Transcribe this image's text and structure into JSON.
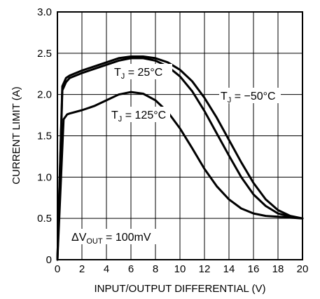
{
  "chart_data": {
    "type": "line",
    "xlabel": "INPUT/OUTPUT DIFFERENTIAL (V)",
    "ylabel": "CURRENT LIMIT (A)",
    "xlim": [
      0,
      20
    ],
    "ylim": [
      0,
      3.0
    ],
    "x_ticks": [
      "0",
      "2",
      "4",
      "6",
      "8",
      "10",
      "12",
      "14",
      "16",
      "18",
      "20"
    ],
    "y_ticks": [
      "0",
      "0.5",
      "1.0",
      "1.5",
      "2.0",
      "2.5",
      "3.0"
    ],
    "grid": true,
    "series": [
      {
        "name": "TJ = 25°C",
        "label": {
          "main": "T",
          "sub": "J",
          "rest": " = 25°C"
        },
        "points": [
          [
            0,
            0
          ],
          [
            0.4,
            2.05
          ],
          [
            0.7,
            2.15
          ],
          [
            1,
            2.2
          ],
          [
            2,
            2.26
          ],
          [
            3,
            2.31
          ],
          [
            4,
            2.36
          ],
          [
            5,
            2.41
          ],
          [
            6,
            2.44
          ],
          [
            7,
            2.44
          ],
          [
            8,
            2.41
          ],
          [
            9,
            2.34
          ],
          [
            10,
            2.22
          ],
          [
            11,
            2.04
          ],
          [
            12,
            1.8
          ],
          [
            13,
            1.53
          ],
          [
            14,
            1.26
          ],
          [
            15,
            1.0
          ],
          [
            16,
            0.79
          ],
          [
            17,
            0.65
          ],
          [
            18,
            0.56
          ],
          [
            19,
            0.52
          ],
          [
            20,
            0.5
          ]
        ]
      },
      {
        "name": "TJ = −50°C",
        "label": {
          "main": "T",
          "sub": "J",
          "rest": " = −50°C"
        },
        "points": [
          [
            0,
            0
          ],
          [
            0.4,
            2.1
          ],
          [
            0.7,
            2.2
          ],
          [
            1,
            2.23
          ],
          [
            2,
            2.29
          ],
          [
            3,
            2.34
          ],
          [
            4,
            2.39
          ],
          [
            5,
            2.44
          ],
          [
            6,
            2.46
          ],
          [
            7,
            2.46
          ],
          [
            8,
            2.44
          ],
          [
            9,
            2.39
          ],
          [
            10,
            2.3
          ],
          [
            11,
            2.16
          ],
          [
            12,
            1.96
          ],
          [
            13,
            1.72
          ],
          [
            14,
            1.45
          ],
          [
            15,
            1.18
          ],
          [
            16,
            0.93
          ],
          [
            17,
            0.73
          ],
          [
            18,
            0.6
          ],
          [
            19,
            0.53
          ],
          [
            20,
            0.5
          ]
        ]
      },
      {
        "name": "TJ = 125°C",
        "label": {
          "main": "T",
          "sub": "J",
          "rest": " = 125°C"
        },
        "points": [
          [
            0,
            0
          ],
          [
            0.5,
            1.7
          ],
          [
            0.8,
            1.76
          ],
          [
            1,
            1.77
          ],
          [
            2,
            1.81
          ],
          [
            3,
            1.86
          ],
          [
            4,
            1.93
          ],
          [
            5,
            2.0
          ],
          [
            6,
            2.03
          ],
          [
            7,
            2.01
          ],
          [
            8,
            1.93
          ],
          [
            9,
            1.79
          ],
          [
            10,
            1.59
          ],
          [
            11,
            1.35
          ],
          [
            12,
            1.1
          ],
          [
            13,
            0.89
          ],
          [
            14,
            0.73
          ],
          [
            15,
            0.62
          ],
          [
            16,
            0.56
          ],
          [
            17,
            0.53
          ],
          [
            18,
            0.52
          ],
          [
            19,
            0.51
          ],
          [
            20,
            0.5
          ]
        ]
      }
    ],
    "annotations": [
      {
        "prefix": "ΔV",
        "sub": "OUT",
        "rest": " = 100mV"
      }
    ]
  }
}
